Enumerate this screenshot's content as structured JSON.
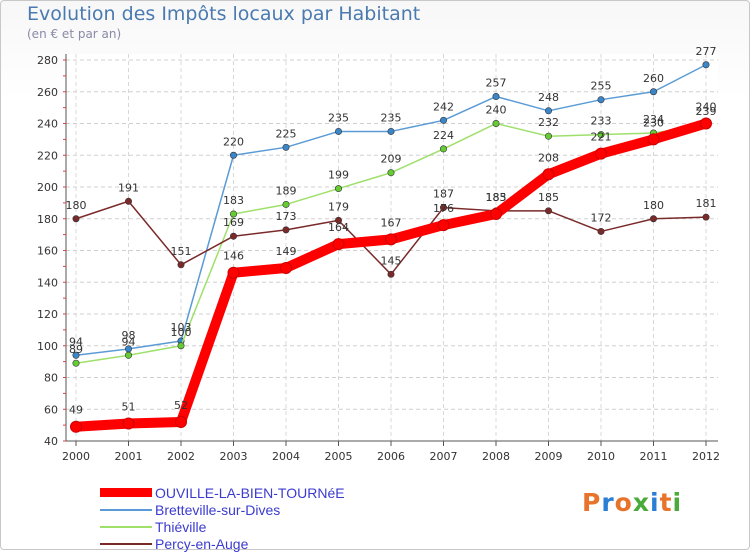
{
  "header": {
    "title": "Evolution des Impôts locaux par Habitant",
    "subtitle": "(en € et par an)"
  },
  "brand": {
    "name": "Proxiti",
    "colors": [
      "#e8732a",
      "#2a7fd4",
      "#e8732a",
      "#4aaa3a",
      "#2a7fd4",
      "#e8732a",
      "#4aaa3a"
    ]
  },
  "chart_data": {
    "type": "line",
    "title": "Evolution des Impôts locaux par Habitant",
    "subtitle": "(en € et par an)",
    "xlabel": "",
    "ylabel": "",
    "categories": [
      "2000",
      "2001",
      "2002",
      "2003",
      "2004",
      "2005",
      "2006",
      "2007",
      "2008",
      "2009",
      "2010",
      "2011",
      "2012"
    ],
    "ylim": [
      40,
      280
    ],
    "yticks": [
      40,
      60,
      80,
      100,
      120,
      140,
      160,
      180,
      200,
      220,
      240,
      260,
      280
    ],
    "grid": "horizontal dashed",
    "legend_position": "bottom-left",
    "series": [
      {
        "name": "Bretteville-sur-Dives",
        "color": "#5b9bd5",
        "marker": "#3a86c8",
        "values": [
          94,
          98,
          103,
          220,
          225,
          235,
          235,
          242,
          257,
          248,
          255,
          260,
          277
        ]
      },
      {
        "name": "Thiéville",
        "color": "#9ee06a",
        "marker": "#66cc33",
        "values": [
          89,
          94,
          100,
          183,
          189,
          199,
          209,
          224,
          240,
          232,
          233,
          234,
          239
        ]
      },
      {
        "name": "Percy-en-Auge",
        "color": "#7b2a2a",
        "marker": "#7b2a2a",
        "values": [
          180,
          191,
          151,
          169,
          173,
          179,
          145,
          187,
          185,
          185,
          172,
          180,
          181
        ]
      },
      {
        "name": "OUVILLE-LA-BIEN-TOURNéE",
        "color": "#ff0000",
        "marker": "#ff0000",
        "values": [
          49,
          51,
          52,
          146,
          149,
          164,
          167,
          176,
          183,
          208,
          221,
          230,
          240
        ]
      }
    ],
    "legend_order": [
      "OUVILLE-LA-BIEN-TOURNéE",
      "Bretteville-sur-Dives",
      "Thiéville",
      "Percy-en-Auge"
    ]
  }
}
